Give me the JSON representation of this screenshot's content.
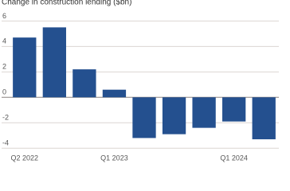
{
  "chart_data": {
    "type": "bar",
    "title": "Change in construction lending ($bn)",
    "categories": [
      "Q2 2022",
      null,
      null,
      "Q1 2023",
      null,
      null,
      null,
      "Q1 2024",
      null
    ],
    "values": [
      4.7,
      5.5,
      2.2,
      0.6,
      -3.2,
      -2.9,
      -2.4,
      -1.9,
      -3.3
    ],
    "color": "#24508f",
    "ylim": [
      -4.3,
      6.4
    ],
    "yticks": [
      -4,
      -2,
      0,
      2,
      4,
      6
    ],
    "grid": true
  }
}
